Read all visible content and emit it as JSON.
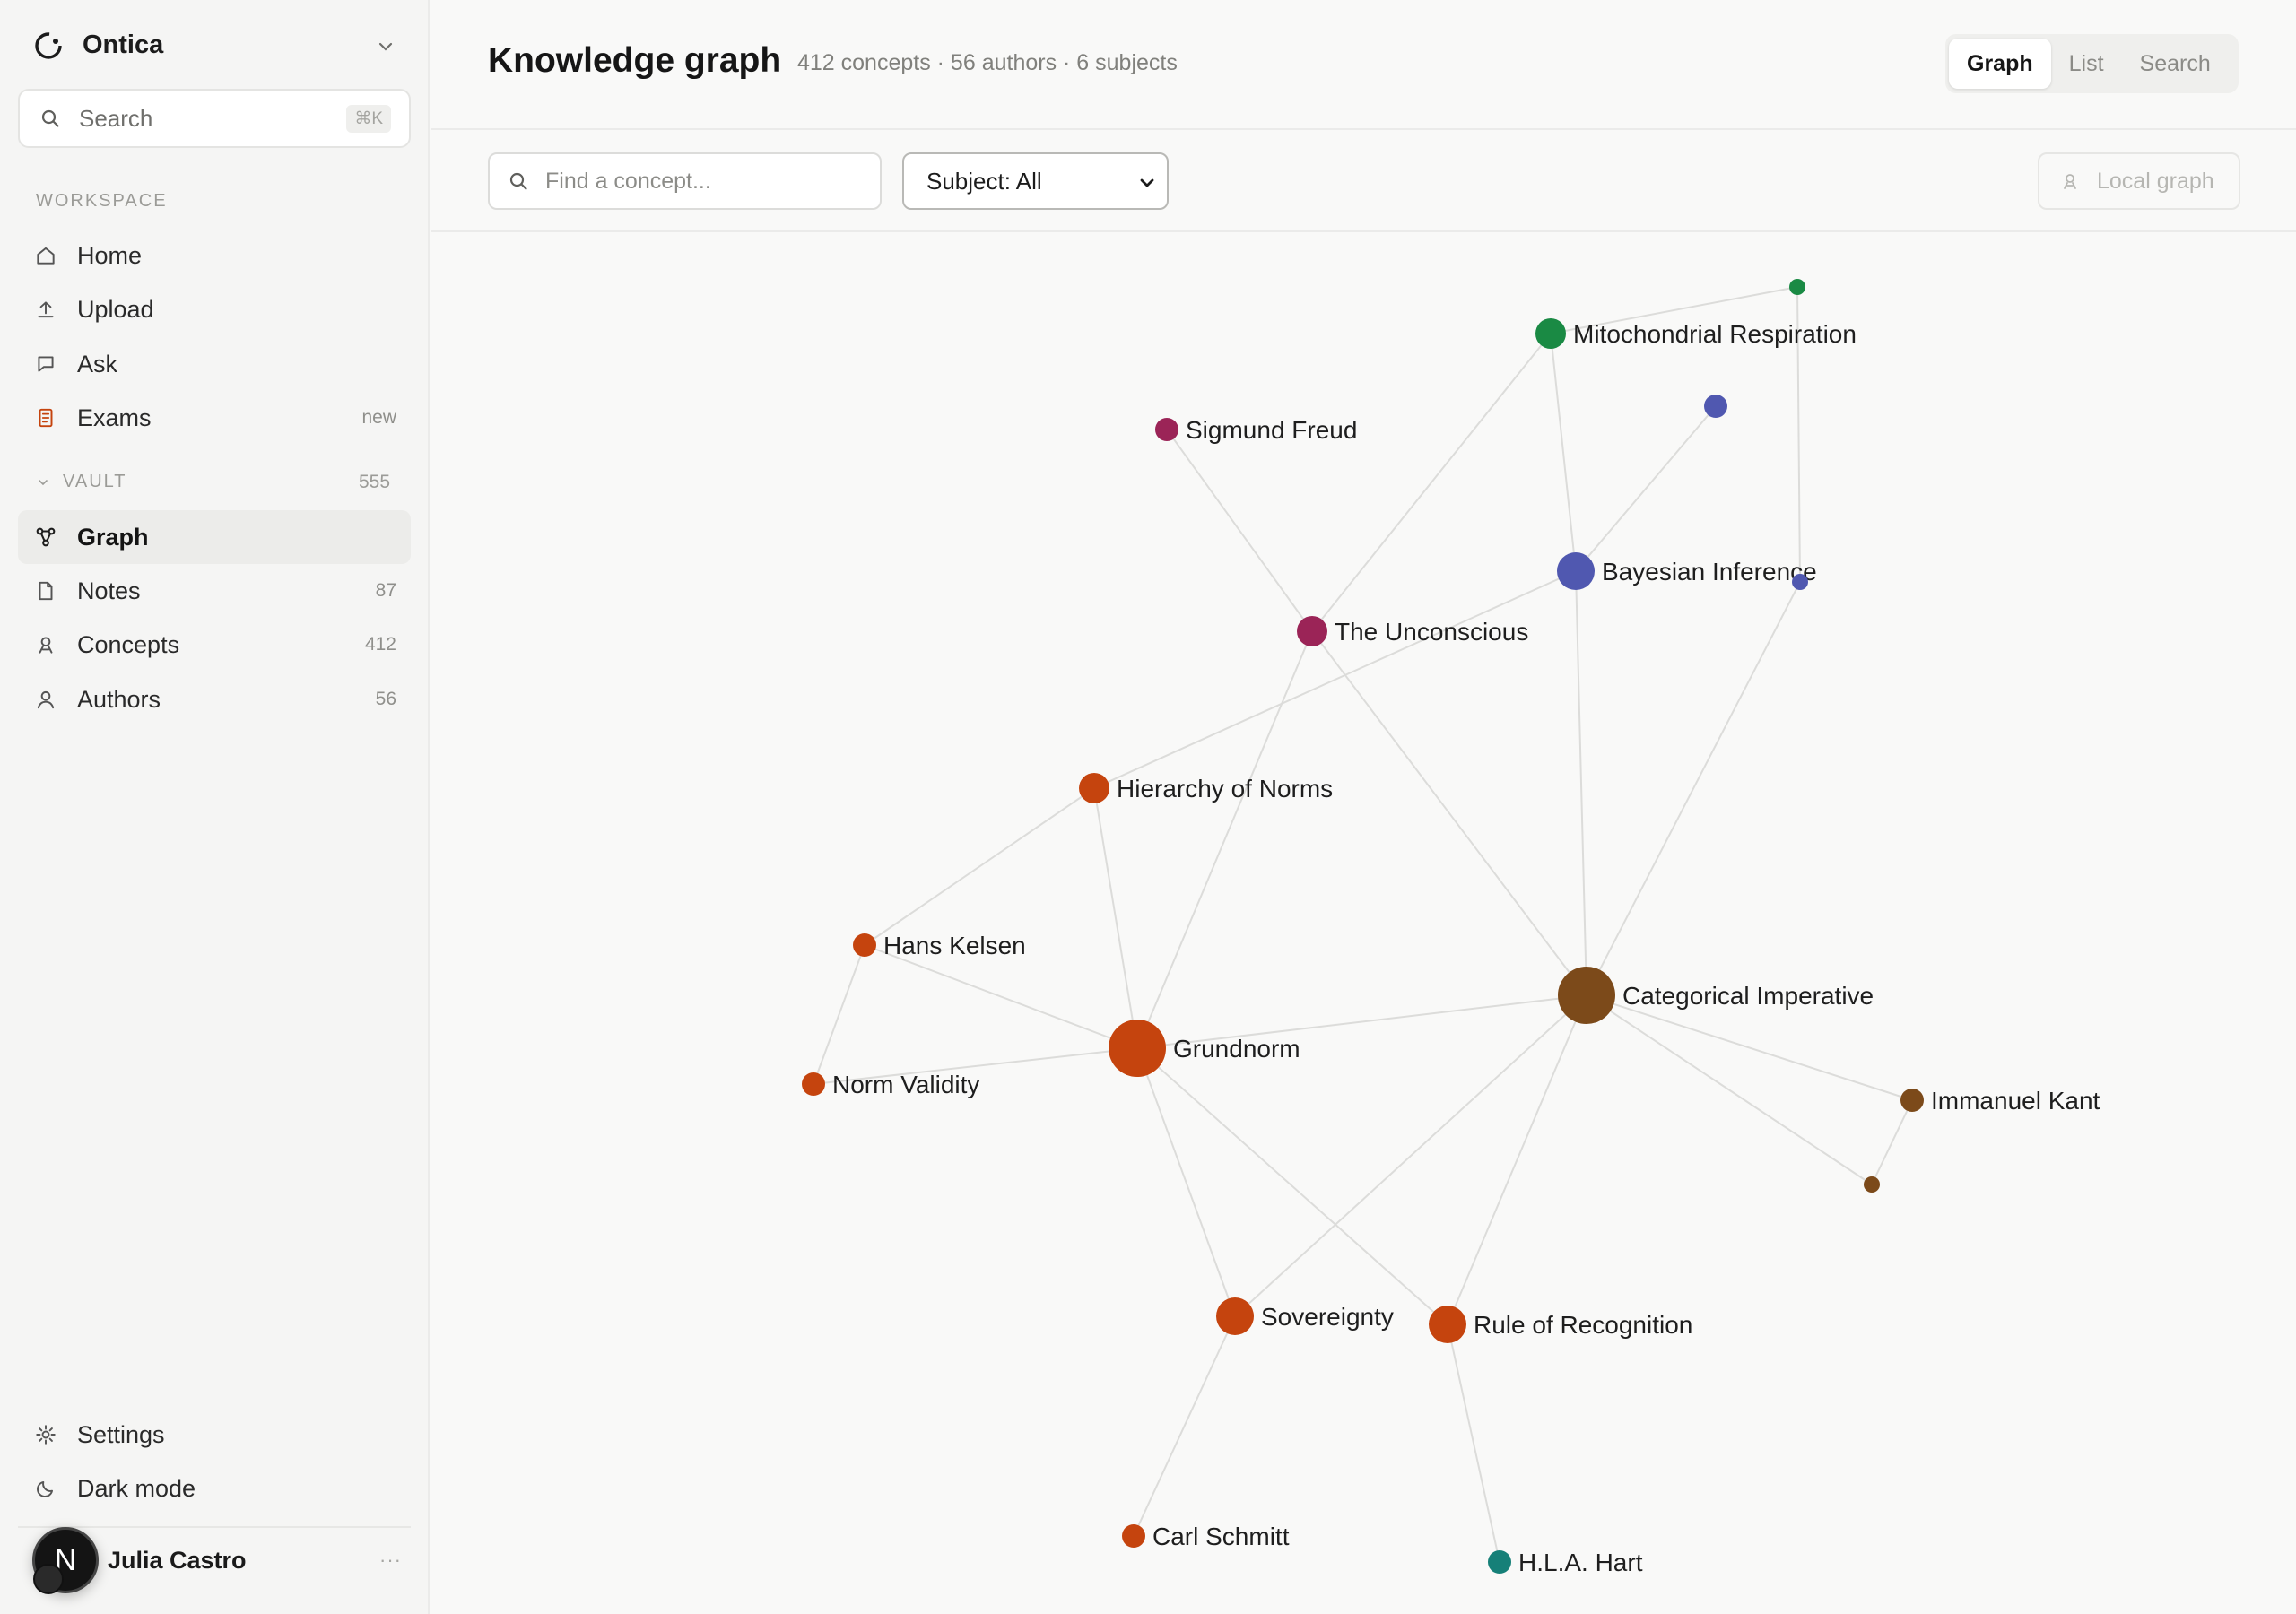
{
  "app": {
    "name": "Ontica",
    "search_placeholder": "Search",
    "search_shortcut": "⌘K"
  },
  "sidebar": {
    "workspace_label": "WORKSPACE",
    "workspace_items": [
      {
        "label": "Home",
        "icon": "home-icon"
      },
      {
        "label": "Upload",
        "icon": "upload-icon"
      },
      {
        "label": "Ask",
        "icon": "chat-icon"
      },
      {
        "label": "Exams",
        "icon": "exam-icon",
        "badge": "new"
      }
    ],
    "vault_label": "VAULT",
    "vault_count": "555",
    "vault_items": [
      {
        "label": "Graph",
        "icon": "graph-icon",
        "active": true
      },
      {
        "label": "Notes",
        "icon": "note-icon",
        "count": "87"
      },
      {
        "label": "Concepts",
        "icon": "concept-icon",
        "count": "412"
      },
      {
        "label": "Authors",
        "icon": "user-icon",
        "count": "56"
      }
    ],
    "bottom_items": [
      {
        "label": "Settings",
        "icon": "gear-icon"
      },
      {
        "label": "Dark mode",
        "icon": "moon-icon"
      }
    ],
    "user": {
      "name": "Julia Castro",
      "avatar_letter": "N",
      "more": "···"
    }
  },
  "header": {
    "title": "Knowledge graph",
    "subtitle": "412 concepts · 56 authors · 6 subjects",
    "views": [
      "Graph",
      "List",
      "Search"
    ],
    "active_view": "Graph"
  },
  "toolbar": {
    "find_placeholder": "Find a concept...",
    "subject_value": "Subject: All",
    "local_graph_label": "Local graph"
  },
  "graph": {
    "colors": {
      "law": "#c5440e",
      "philosophy": "#7c4a1a",
      "psychology": "#9b2457",
      "statistics": "#5058b0",
      "biology": "#1a8a44",
      "teal": "#168078",
      "edge": "#dcdcda"
    },
    "nodes": [
      {
        "id": "grundnorm",
        "label": "Grundnorm",
        "group": "law",
        "size": "xl"
      },
      {
        "id": "catimp",
        "label": "Categorical Imperative",
        "group": "philosophy",
        "size": "xl"
      },
      {
        "id": "bayes",
        "label": "Bayesian Inference",
        "group": "statistics",
        "size": "lg"
      },
      {
        "id": "mito",
        "label": "Mitochondrial Respiration",
        "group": "biology",
        "size": "md"
      },
      {
        "id": "freud",
        "label": "Sigmund Freud",
        "group": "psychology",
        "size": "sm"
      },
      {
        "id": "unconscious",
        "label": "The Unconscious",
        "group": "psychology",
        "size": "md"
      },
      {
        "id": "hierarchy",
        "label": "Hierarchy of Norms",
        "group": "law",
        "size": "md"
      },
      {
        "id": "kelsen",
        "label": "Hans Kelsen",
        "group": "law",
        "size": "sm"
      },
      {
        "id": "validity",
        "label": "Norm Validity",
        "group": "law",
        "size": "sm"
      },
      {
        "id": "sovereignty",
        "label": "Sovereignty",
        "group": "law",
        "size": "lg"
      },
      {
        "id": "recognition",
        "label": "Rule of Recognition",
        "group": "law",
        "size": "lg"
      },
      {
        "id": "schmitt",
        "label": "Carl Schmitt",
        "group": "law",
        "size": "sm"
      },
      {
        "id": "hart",
        "label": "H.L.A. Hart",
        "group": "teal",
        "size": "sm"
      },
      {
        "id": "kant",
        "label": "Immanuel Kant",
        "group": "philosophy",
        "size": "sm"
      },
      {
        "id": "kant2",
        "label": "",
        "group": "philosophy",
        "size": "xs"
      },
      {
        "id": "bio2",
        "label": "",
        "group": "biology",
        "size": "xs"
      },
      {
        "id": "stat2",
        "label": "",
        "group": "statistics",
        "size": "sm"
      },
      {
        "id": "stat3",
        "label": "",
        "group": "statistics",
        "size": "xs"
      }
    ],
    "edges": [
      [
        "freud",
        "unconscious"
      ],
      [
        "mito",
        "unconscious"
      ],
      [
        "mito",
        "bio2"
      ],
      [
        "mito",
        "bayes"
      ],
      [
        "bio2",
        "stat3"
      ],
      [
        "bayes",
        "stat2"
      ],
      [
        "bayes",
        "hierarchy"
      ],
      [
        "bayes",
        "catimp"
      ],
      [
        "stat3",
        "catimp"
      ],
      [
        "unconscious",
        "grundnorm"
      ],
      [
        "unconscious",
        "catimp"
      ],
      [
        "hierarchy",
        "grundnorm"
      ],
      [
        "hierarchy",
        "kelsen"
      ],
      [
        "kelsen",
        "grundnorm"
      ],
      [
        "kelsen",
        "validity"
      ],
      [
        "validity",
        "grundnorm"
      ],
      [
        "grundnorm",
        "catimp"
      ],
      [
        "grundnorm",
        "sovereignty"
      ],
      [
        "grundnorm",
        "recognition"
      ],
      [
        "catimp",
        "sovereignty"
      ],
      [
        "catimp",
        "recognition"
      ],
      [
        "catimp",
        "kant"
      ],
      [
        "catimp",
        "kant2"
      ],
      [
        "kant",
        "kant2"
      ],
      [
        "sovereignty",
        "schmitt"
      ],
      [
        "recognition",
        "hart"
      ]
    ]
  }
}
